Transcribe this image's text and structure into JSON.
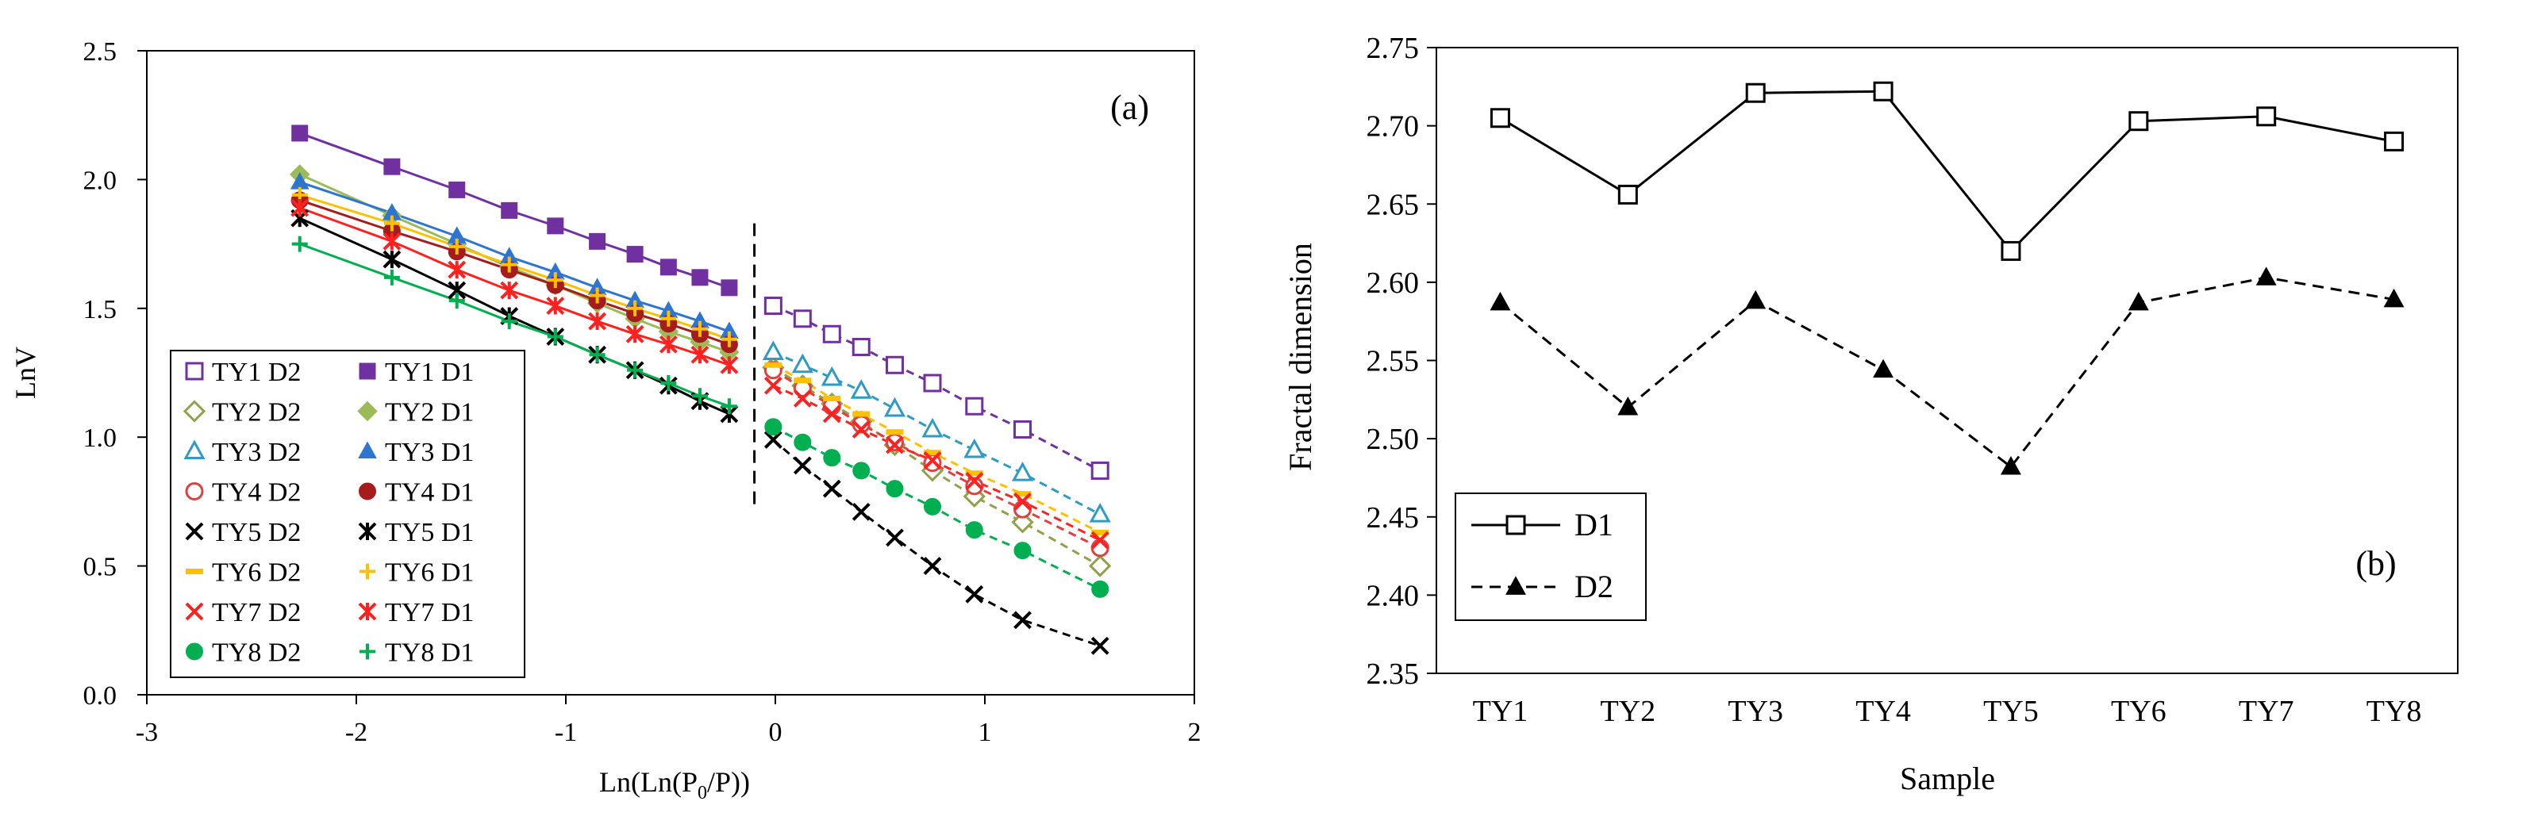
{
  "chart_data": [
    {
      "type": "scatter",
      "panel_label": "(a)",
      "xlabel": {
        "pre": "Ln(Ln(P",
        "sub": "0",
        "post": "/P))"
      },
      "ylabel": "LnV",
      "xlim": [
        -3,
        2
      ],
      "ylim": [
        0,
        2.5
      ],
      "xticks": [
        "-3",
        "-2",
        "-1",
        "0",
        "1",
        "2"
      ],
      "yticks": [
        "0.0",
        "0.5",
        "1.0",
        "1.5",
        "2.0",
        "2.5"
      ],
      "grid": false,
      "legend_position": "bottom-left",
      "divider_x": -0.1,
      "d1_x": [
        -2.27,
        -1.83,
        -1.52,
        -1.27,
        -1.05,
        -0.85,
        -0.67,
        -0.51,
        -0.36,
        -0.22
      ],
      "d2_x": [
        -0.01,
        0.13,
        0.27,
        0.41,
        0.57,
        0.75,
        0.95,
        1.18,
        1.55
      ],
      "series": [
        {
          "name": "TY1 D2",
          "color": "#7030A0",
          "marker": "square-open",
          "line": "dashed",
          "which": "d2",
          "y": [
            1.51,
            1.46,
            1.4,
            1.35,
            1.28,
            1.21,
            1.12,
            1.03,
            0.87
          ]
        },
        {
          "name": "TY1 D1",
          "color": "#7030A0",
          "marker": "square-filled",
          "line": "solid",
          "which": "d1",
          "y": [
            2.18,
            2.05,
            1.96,
            1.88,
            1.82,
            1.76,
            1.71,
            1.66,
            1.62,
            1.58
          ]
        },
        {
          "name": "TY2 D2",
          "color": "#92A04A",
          "marker": "diamond-open",
          "line": "dashed",
          "which": "d2",
          "y": [
            1.27,
            1.2,
            1.13,
            1.06,
            0.97,
            0.87,
            0.77,
            0.67,
            0.5
          ]
        },
        {
          "name": "TY2 D1",
          "color": "#9BBB59",
          "marker": "diamond-filled",
          "line": "solid",
          "which": "d1",
          "y": [
            2.02,
            1.86,
            1.75,
            1.66,
            1.59,
            1.52,
            1.46,
            1.41,
            1.37,
            1.33
          ]
        },
        {
          "name": "TY3 D2",
          "color": "#2E9BC6",
          "marker": "triangle-open",
          "line": "dashed",
          "which": "d2",
          "y": [
            1.33,
            1.28,
            1.23,
            1.18,
            1.11,
            1.03,
            0.95,
            0.86,
            0.7
          ]
        },
        {
          "name": "TY3 D1",
          "color": "#2E75D2",
          "marker": "triangle-filled",
          "line": "solid",
          "which": "d1",
          "y": [
            1.99,
            1.87,
            1.78,
            1.7,
            1.64,
            1.58,
            1.53,
            1.49,
            1.45,
            1.41
          ]
        },
        {
          "name": "TY4 D2",
          "color": "#E04040",
          "marker": "circle-open",
          "line": "dashed",
          "which": "d2",
          "y": [
            1.26,
            1.19,
            1.12,
            1.05,
            0.98,
            0.9,
            0.81,
            0.72,
            0.57
          ]
        },
        {
          "name": "TY4 D1",
          "color": "#A61C1C",
          "marker": "circle-filled",
          "line": "solid",
          "which": "d1",
          "y": [
            1.92,
            1.8,
            1.72,
            1.65,
            1.59,
            1.53,
            1.48,
            1.44,
            1.4,
            1.36
          ]
        },
        {
          "name": "TY5 D2",
          "color": "#000000",
          "marker": "x",
          "line": "dashed",
          "which": "d2",
          "y": [
            0.99,
            0.89,
            0.8,
            0.71,
            0.61,
            0.5,
            0.39,
            0.29,
            0.19
          ]
        },
        {
          "name": "TY5 D1",
          "color": "#000000",
          "marker": "asterisk",
          "line": "solid",
          "which": "d1",
          "y": [
            1.85,
            1.69,
            1.57,
            1.47,
            1.39,
            1.32,
            1.26,
            1.2,
            1.14,
            1.09
          ]
        },
        {
          "name": "TY6 D2",
          "color": "#FFC000",
          "marker": "dash",
          "line": "dashed",
          "which": "d2",
          "y": [
            1.28,
            1.22,
            1.15,
            1.09,
            1.02,
            0.94,
            0.86,
            0.78,
            0.63
          ]
        },
        {
          "name": "TY6 D1",
          "color": "#FFC000",
          "marker": "plus",
          "line": "solid",
          "which": "d1",
          "y": [
            1.94,
            1.83,
            1.74,
            1.67,
            1.61,
            1.55,
            1.5,
            1.46,
            1.42,
            1.38
          ]
        },
        {
          "name": "TY7 D2",
          "color": "#FF2020",
          "marker": "x",
          "line": "dashed",
          "which": "d2",
          "y": [
            1.2,
            1.15,
            1.09,
            1.03,
            0.97,
            0.91,
            0.83,
            0.75,
            0.6
          ]
        },
        {
          "name": "TY7 D1",
          "color": "#FF2020",
          "marker": "asterisk",
          "line": "solid",
          "which": "d1",
          "y": [
            1.89,
            1.76,
            1.65,
            1.57,
            1.51,
            1.45,
            1.4,
            1.36,
            1.32,
            1.28
          ]
        },
        {
          "name": "TY8 D2",
          "color": "#00B050",
          "marker": "circle-filled",
          "line": "dashed",
          "which": "d2",
          "y": [
            1.04,
            0.98,
            0.92,
            0.87,
            0.8,
            0.73,
            0.64,
            0.56,
            0.41
          ]
        },
        {
          "name": "TY8 D1",
          "color": "#00B050",
          "marker": "plus",
          "line": "solid",
          "which": "d1",
          "y": [
            1.75,
            1.62,
            1.53,
            1.45,
            1.39,
            1.32,
            1.26,
            1.21,
            1.16,
            1.12
          ]
        }
      ]
    },
    {
      "type": "line",
      "panel_label": "(b)",
      "xlabel": "Sample",
      "ylabel": "Fractal dimension",
      "categories": [
        "TY1",
        "TY2",
        "TY3",
        "TY4",
        "TY5",
        "TY6",
        "TY7",
        "TY8"
      ],
      "ylim": [
        2.35,
        2.75
      ],
      "yticks": [
        "2.35",
        "2.40",
        "2.45",
        "2.50",
        "2.55",
        "2.60",
        "2.65",
        "2.70",
        "2.75"
      ],
      "grid": false,
      "legend_position": "bottom-left",
      "series": [
        {
          "name": "D1",
          "color": "#000000",
          "marker": "square-open",
          "line": "solid",
          "values": [
            2.705,
            2.656,
            2.721,
            2.722,
            2.62,
            2.703,
            2.706,
            2.69
          ]
        },
        {
          "name": "D2",
          "color": "#000000",
          "marker": "triangle-filled",
          "line": "dashed",
          "values": [
            2.587,
            2.52,
            2.588,
            2.544,
            2.482,
            2.587,
            2.603,
            2.589
          ]
        }
      ]
    }
  ]
}
